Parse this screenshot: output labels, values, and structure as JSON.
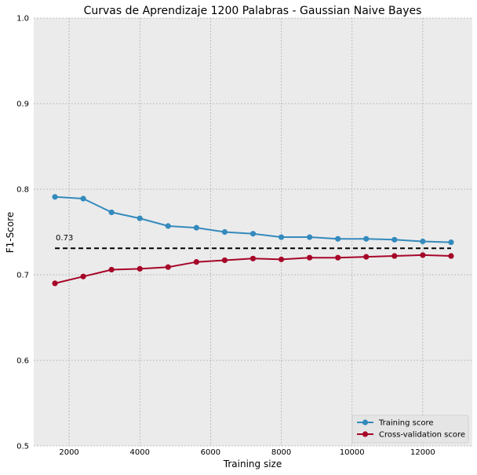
{
  "chart_data": {
    "type": "line",
    "title": "Curvas de Aprendizaje 1200 Palabras - Gaussian Naive Bayes",
    "xlabel": "Training size",
    "ylabel": "F1-Score",
    "xlim": [
      1000,
      13400
    ],
    "ylim": [
      0.5,
      1.0
    ],
    "xticks": [
      2000,
      4000,
      6000,
      8000,
      10000,
      12000
    ],
    "yticks": [
      0.5,
      0.6,
      0.7,
      0.8,
      0.9,
      1.0
    ],
    "grid": true,
    "legend_position": "lower-right",
    "x": [
      1600,
      2400,
      3200,
      4000,
      4800,
      5600,
      6400,
      7200,
      8000,
      8800,
      9600,
      10400,
      11200,
      12000,
      12800
    ],
    "series": [
      {
        "name": "Training score",
        "color": "#348ABD",
        "values": [
          0.791,
          0.789,
          0.773,
          0.766,
          0.757,
          0.755,
          0.75,
          0.748,
          0.744,
          0.744,
          0.742,
          0.742,
          0.741,
          0.739,
          0.738
        ]
      },
      {
        "name": "Cross-validation score",
        "color": "#A60628",
        "values": [
          0.69,
          0.698,
          0.706,
          0.707,
          0.709,
          0.715,
          0.717,
          0.719,
          0.718,
          0.72,
          0.72,
          0.721,
          0.722,
          0.723,
          0.722
        ]
      }
    ],
    "reference_line": {
      "y": 0.731,
      "x_start": 1600,
      "x_end": 12800,
      "label": "0.73",
      "style": "dashed",
      "color": "#000000"
    }
  }
}
